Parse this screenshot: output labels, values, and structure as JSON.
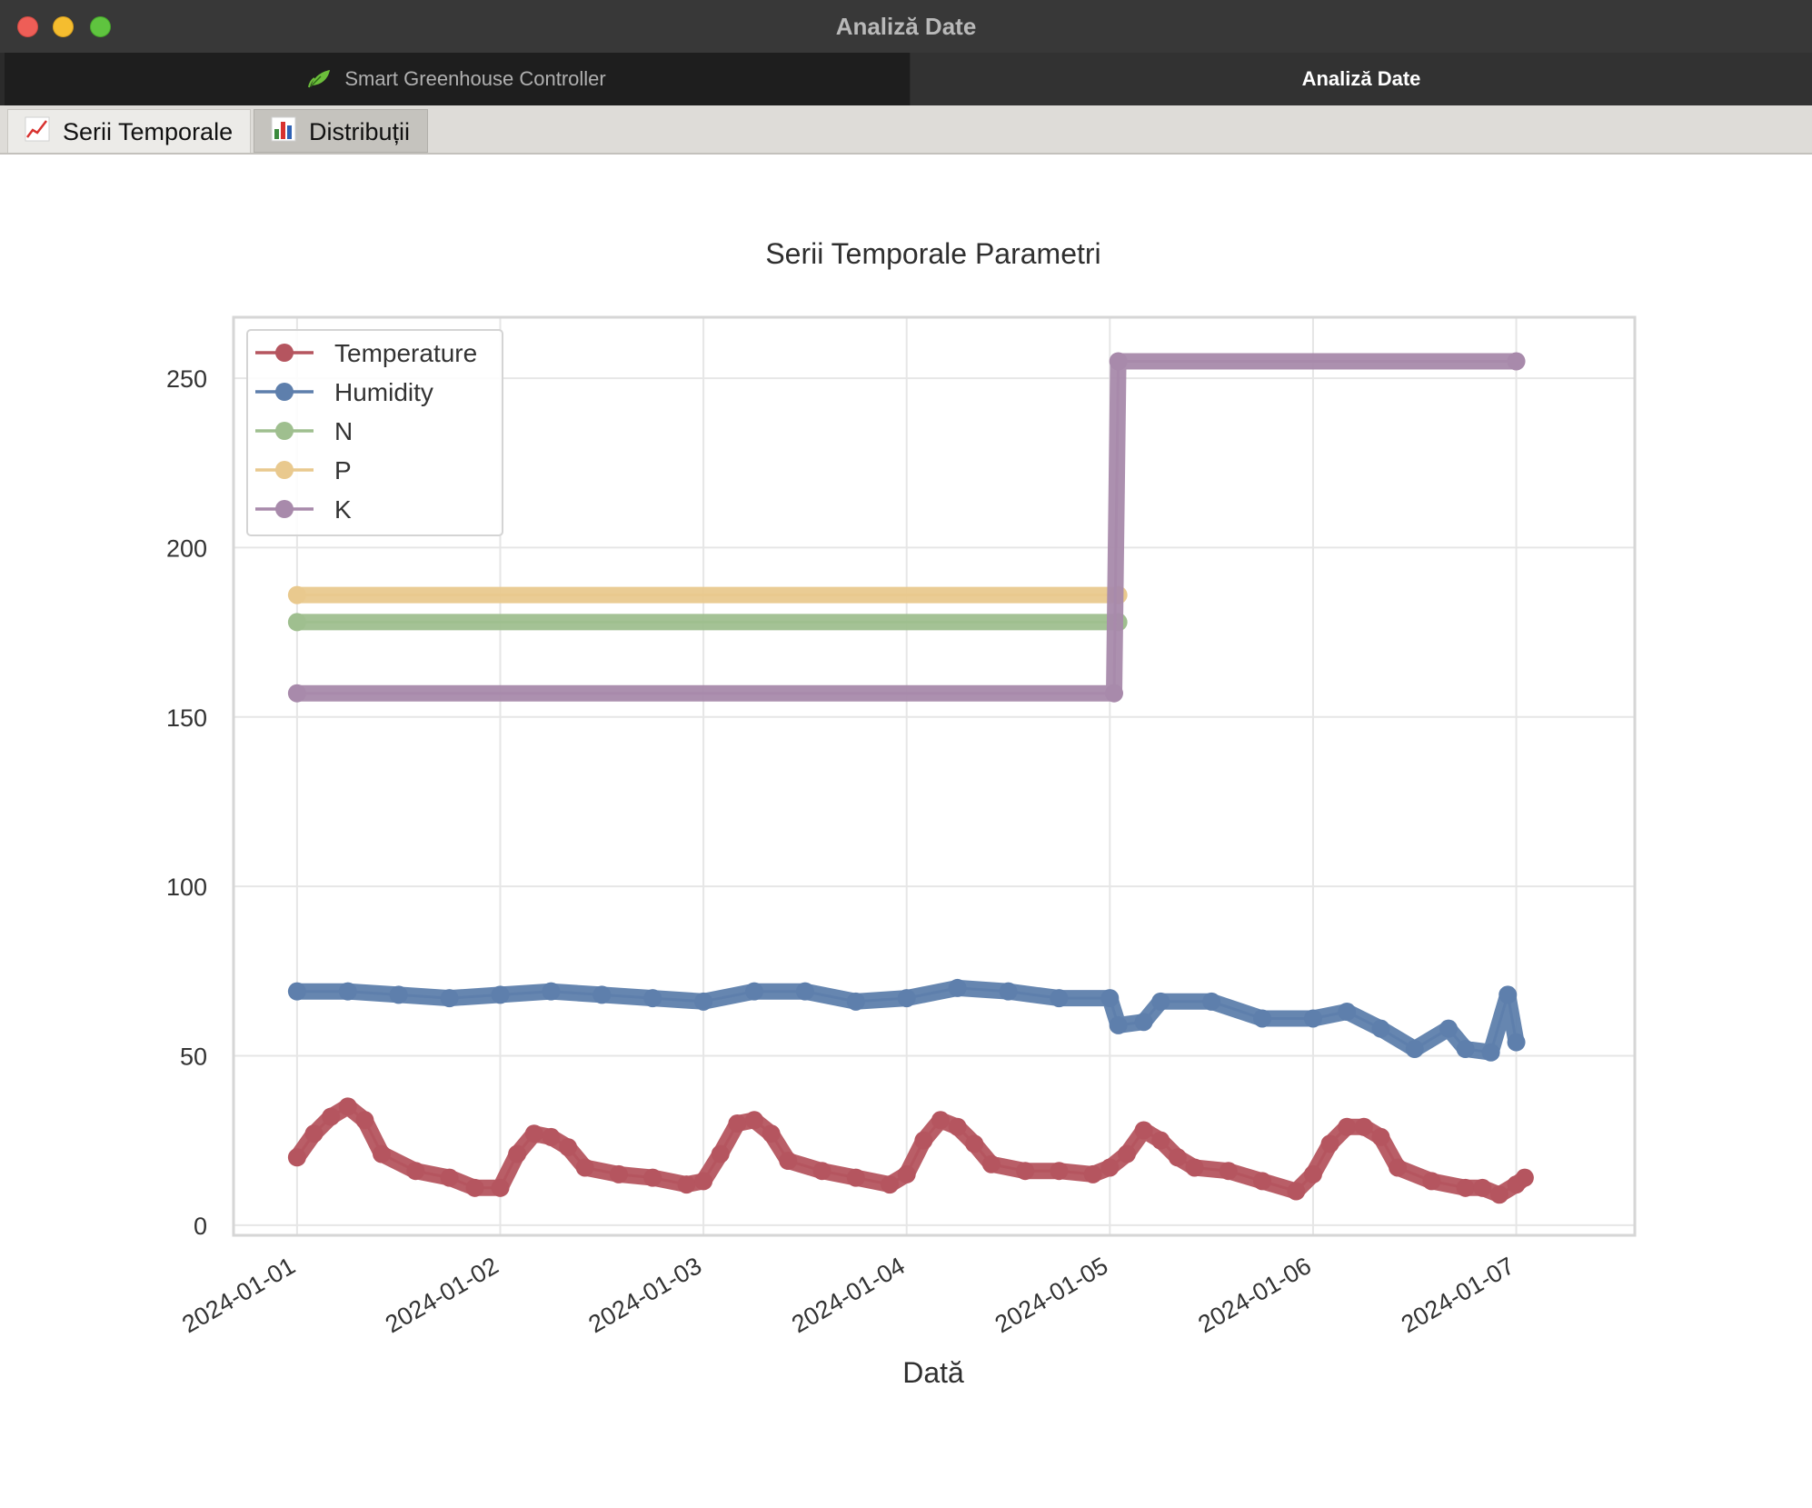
{
  "window": {
    "title": "Analiză Date"
  },
  "top_tabs": [
    {
      "label": "Smart Greenhouse Controller",
      "icon": "leaf-icon",
      "active": false
    },
    {
      "label": "Analiză Date",
      "active": true
    }
  ],
  "sub_tabs": [
    {
      "label": "Serii Temporale",
      "icon": "line-chart-icon",
      "active": true
    },
    {
      "label": "Distribuții",
      "icon": "bar-chart-icon",
      "active": false
    }
  ],
  "chart_data": {
    "type": "line",
    "title": "Serii Temporale Parametri",
    "xlabel": "Dată",
    "ylabel": "",
    "x_ticks": [
      "2024-01-01",
      "2024-01-02",
      "2024-01-03",
      "2024-01-04",
      "2024-01-05",
      "2024-01-06",
      "2024-01-07"
    ],
    "y_ticks": [
      0,
      50,
      100,
      150,
      200,
      250
    ],
    "xlim": [
      "2023-12-31T16:30",
      "2024-01-07T14:00"
    ],
    "ylim": [
      -3,
      268
    ],
    "grid": true,
    "legend_position": "upper-left",
    "series": [
      {
        "name": "Temperature",
        "color": "#b5555f",
        "points": [
          [
            "2024-01-01T00:00",
            20
          ],
          [
            "2024-01-01T02:00",
            27
          ],
          [
            "2024-01-01T04:00",
            32
          ],
          [
            "2024-01-01T06:00",
            35
          ],
          [
            "2024-01-01T08:00",
            31
          ],
          [
            "2024-01-01T10:00",
            21
          ],
          [
            "2024-01-01T14:00",
            16
          ],
          [
            "2024-01-01T18:00",
            14
          ],
          [
            "2024-01-01T21:00",
            11
          ],
          [
            "2024-01-02T00:00",
            11
          ],
          [
            "2024-01-02T02:00",
            21
          ],
          [
            "2024-01-02T04:00",
            27
          ],
          [
            "2024-01-02T06:00",
            26
          ],
          [
            "2024-01-02T08:00",
            23
          ],
          [
            "2024-01-02T10:00",
            17
          ],
          [
            "2024-01-02T14:00",
            15
          ],
          [
            "2024-01-02T18:00",
            14
          ],
          [
            "2024-01-02T22:00",
            12
          ],
          [
            "2024-01-03T00:00",
            13
          ],
          [
            "2024-01-03T02:00",
            21
          ],
          [
            "2024-01-03T04:00",
            30
          ],
          [
            "2024-01-03T06:00",
            31
          ],
          [
            "2024-01-03T08:00",
            27
          ],
          [
            "2024-01-03T10:00",
            19
          ],
          [
            "2024-01-03T14:00",
            16
          ],
          [
            "2024-01-03T18:00",
            14
          ],
          [
            "2024-01-03T22:00",
            12
          ],
          [
            "2024-01-04T00:00",
            15
          ],
          [
            "2024-01-04T02:00",
            25
          ],
          [
            "2024-01-04T04:00",
            31
          ],
          [
            "2024-01-04T06:00",
            29
          ],
          [
            "2024-01-04T08:00",
            24
          ],
          [
            "2024-01-04T10:00",
            18
          ],
          [
            "2024-01-04T14:00",
            16
          ],
          [
            "2024-01-04T18:00",
            16
          ],
          [
            "2024-01-04T22:00",
            15
          ],
          [
            "2024-01-05T00:00",
            17
          ],
          [
            "2024-01-05T02:00",
            21
          ],
          [
            "2024-01-05T04:00",
            28
          ],
          [
            "2024-01-05T06:00",
            25
          ],
          [
            "2024-01-05T08:00",
            20
          ],
          [
            "2024-01-05T10:00",
            17
          ],
          [
            "2024-01-05T14:00",
            16
          ],
          [
            "2024-01-05T18:00",
            13
          ],
          [
            "2024-01-05T22:00",
            10
          ],
          [
            "2024-01-06T00:00",
            15
          ],
          [
            "2024-01-06T02:00",
            24
          ],
          [
            "2024-01-06T04:00",
            29
          ],
          [
            "2024-01-06T06:00",
            29
          ],
          [
            "2024-01-06T08:00",
            26
          ],
          [
            "2024-01-06T10:00",
            17
          ],
          [
            "2024-01-06T14:00",
            13
          ],
          [
            "2024-01-06T18:00",
            11
          ],
          [
            "2024-01-06T20:00",
            11
          ],
          [
            "2024-01-06T22:00",
            9
          ],
          [
            "2024-01-07T00:00",
            12
          ],
          [
            "2024-01-07T01:00",
            14
          ]
        ]
      },
      {
        "name": "Humidity",
        "color": "#5e7fac",
        "points": [
          [
            "2024-01-01T00:00",
            69
          ],
          [
            "2024-01-01T06:00",
            69
          ],
          [
            "2024-01-01T12:00",
            68
          ],
          [
            "2024-01-01T18:00",
            67
          ],
          [
            "2024-01-02T00:00",
            68
          ],
          [
            "2024-01-02T06:00",
            69
          ],
          [
            "2024-01-02T12:00",
            68
          ],
          [
            "2024-01-02T18:00",
            67
          ],
          [
            "2024-01-03T00:00",
            66
          ],
          [
            "2024-01-03T06:00",
            69
          ],
          [
            "2024-01-03T12:00",
            69
          ],
          [
            "2024-01-03T18:00",
            66
          ],
          [
            "2024-01-04T00:00",
            67
          ],
          [
            "2024-01-04T06:00",
            70
          ],
          [
            "2024-01-04T12:00",
            69
          ],
          [
            "2024-01-04T18:00",
            67
          ],
          [
            "2024-01-05T00:00",
            67
          ],
          [
            "2024-01-05T01:00",
            59
          ],
          [
            "2024-01-05T04:00",
            60
          ],
          [
            "2024-01-05T06:00",
            66
          ],
          [
            "2024-01-05T12:00",
            66
          ],
          [
            "2024-01-05T18:00",
            61
          ],
          [
            "2024-01-06T00:00",
            61
          ],
          [
            "2024-01-06T04:00",
            63
          ],
          [
            "2024-01-06T08:00",
            58
          ],
          [
            "2024-01-06T12:00",
            52
          ],
          [
            "2024-01-06T16:00",
            58
          ],
          [
            "2024-01-06T18:00",
            52
          ],
          [
            "2024-01-06T21:00",
            51
          ],
          [
            "2024-01-06T23:00",
            68
          ],
          [
            "2024-01-07T00:00",
            54
          ]
        ]
      },
      {
        "name": "N",
        "color": "#9fbf8f",
        "points": [
          [
            "2024-01-01T00:00",
            178
          ],
          [
            "2024-01-05T01:00",
            178
          ]
        ]
      },
      {
        "name": "P",
        "color": "#e9c98e",
        "points": [
          [
            "2024-01-01T00:00",
            186
          ],
          [
            "2024-01-05T01:00",
            186
          ]
        ]
      },
      {
        "name": "K",
        "color": "#a88aab",
        "points": [
          [
            "2024-01-01T00:00",
            157
          ],
          [
            "2024-01-05T00:30",
            157
          ],
          [
            "2024-01-05T01:00",
            255
          ],
          [
            "2024-01-07T00:00",
            255
          ]
        ]
      }
    ]
  }
}
